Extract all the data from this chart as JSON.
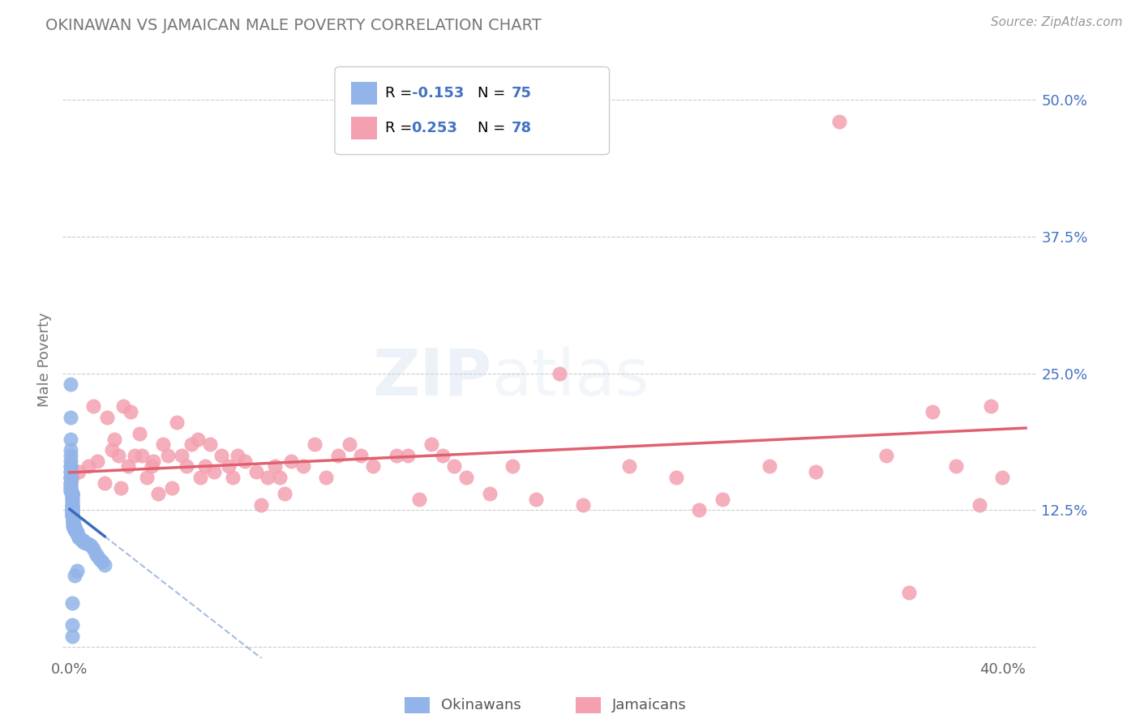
{
  "title": "OKINAWAN VS JAMAICAN MALE POVERTY CORRELATION CHART",
  "source": "Source: ZipAtlas.com",
  "ylabel": "Male Poverty",
  "xlim": [
    -0.003,
    0.415
  ],
  "ylim": [
    -0.01,
    0.535
  ],
  "okinawan_color": "#92b4e8",
  "jamaican_color": "#f4a0b0",
  "okinawan_line_color": "#3a6bbf",
  "jamaican_line_color": "#e06070",
  "okinawan_R": -0.153,
  "okinawan_N": 75,
  "jamaican_R": 0.253,
  "jamaican_N": 78,
  "legend_label_okinawan": "Okinawans",
  "legend_label_jamaican": "Jamaicans",
  "grid_color": "#cccccc",
  "background_color": "#ffffff",
  "title_color": "#777777",
  "right_tick_color": "#4472c4",
  "okinawan_x": [
    0.0005,
    0.0005,
    0.0005,
    0.0005,
    0.0005,
    0.0005,
    0.0005,
    0.0005,
    0.0005,
    0.0005,
    0.0005,
    0.0005,
    0.0005,
    0.0005,
    0.0005,
    0.0005,
    0.0005,
    0.0005,
    0.0005,
    0.0005,
    0.001,
    0.001,
    0.001,
    0.001,
    0.001,
    0.001,
    0.001,
    0.001,
    0.001,
    0.001,
    0.001,
    0.001,
    0.001,
    0.001,
    0.001,
    0.001,
    0.001,
    0.001,
    0.001,
    0.001,
    0.0015,
    0.0015,
    0.0015,
    0.0015,
    0.0015,
    0.0015,
    0.0015,
    0.002,
    0.002,
    0.002,
    0.002,
    0.0025,
    0.003,
    0.003,
    0.003,
    0.004,
    0.004,
    0.005,
    0.005,
    0.006,
    0.006,
    0.007,
    0.008,
    0.009,
    0.01,
    0.011,
    0.012,
    0.013,
    0.014,
    0.015,
    0.003,
    0.002,
    0.001,
    0.001,
    0.001
  ],
  "okinawan_y": [
    0.24,
    0.21,
    0.19,
    0.18,
    0.175,
    0.17,
    0.165,
    0.165,
    0.16,
    0.16,
    0.155,
    0.155,
    0.155,
    0.15,
    0.15,
    0.148,
    0.145,
    0.145,
    0.143,
    0.142,
    0.14,
    0.14,
    0.14,
    0.14,
    0.138,
    0.136,
    0.135,
    0.133,
    0.13,
    0.13,
    0.128,
    0.127,
    0.126,
    0.125,
    0.124,
    0.123,
    0.122,
    0.12,
    0.12,
    0.12,
    0.118,
    0.116,
    0.115,
    0.115,
    0.113,
    0.112,
    0.11,
    0.11,
    0.11,
    0.108,
    0.107,
    0.106,
    0.105,
    0.104,
    0.103,
    0.1,
    0.1,
    0.099,
    0.098,
    0.097,
    0.096,
    0.095,
    0.094,
    0.093,
    0.09,
    0.085,
    0.083,
    0.08,
    0.078,
    0.075,
    0.07,
    0.065,
    0.04,
    0.02,
    0.01
  ],
  "jamaican_x": [
    0.001,
    0.004,
    0.008,
    0.01,
    0.012,
    0.015,
    0.016,
    0.018,
    0.019,
    0.021,
    0.022,
    0.023,
    0.025,
    0.026,
    0.028,
    0.03,
    0.031,
    0.033,
    0.035,
    0.036,
    0.038,
    0.04,
    0.042,
    0.044,
    0.046,
    0.048,
    0.05,
    0.052,
    0.055,
    0.056,
    0.058,
    0.06,
    0.062,
    0.065,
    0.068,
    0.07,
    0.072,
    0.075,
    0.08,
    0.082,
    0.085,
    0.088,
    0.09,
    0.092,
    0.095,
    0.1,
    0.105,
    0.11,
    0.115,
    0.12,
    0.125,
    0.13,
    0.14,
    0.145,
    0.15,
    0.155,
    0.16,
    0.165,
    0.17,
    0.18,
    0.19,
    0.2,
    0.21,
    0.22,
    0.24,
    0.26,
    0.27,
    0.28,
    0.3,
    0.32,
    0.33,
    0.35,
    0.36,
    0.37,
    0.38,
    0.39,
    0.395,
    0.4
  ],
  "jamaican_y": [
    0.155,
    0.16,
    0.165,
    0.22,
    0.17,
    0.15,
    0.21,
    0.18,
    0.19,
    0.175,
    0.145,
    0.22,
    0.165,
    0.215,
    0.175,
    0.195,
    0.175,
    0.155,
    0.165,
    0.17,
    0.14,
    0.185,
    0.175,
    0.145,
    0.205,
    0.175,
    0.165,
    0.185,
    0.19,
    0.155,
    0.165,
    0.185,
    0.16,
    0.175,
    0.165,
    0.155,
    0.175,
    0.17,
    0.16,
    0.13,
    0.155,
    0.165,
    0.155,
    0.14,
    0.17,
    0.165,
    0.185,
    0.155,
    0.175,
    0.185,
    0.175,
    0.165,
    0.175,
    0.175,
    0.135,
    0.185,
    0.175,
    0.165,
    0.155,
    0.14,
    0.165,
    0.135,
    0.25,
    0.13,
    0.165,
    0.155,
    0.125,
    0.135,
    0.165,
    0.16,
    0.48,
    0.175,
    0.05,
    0.215,
    0.165,
    0.13,
    0.22,
    0.155
  ]
}
